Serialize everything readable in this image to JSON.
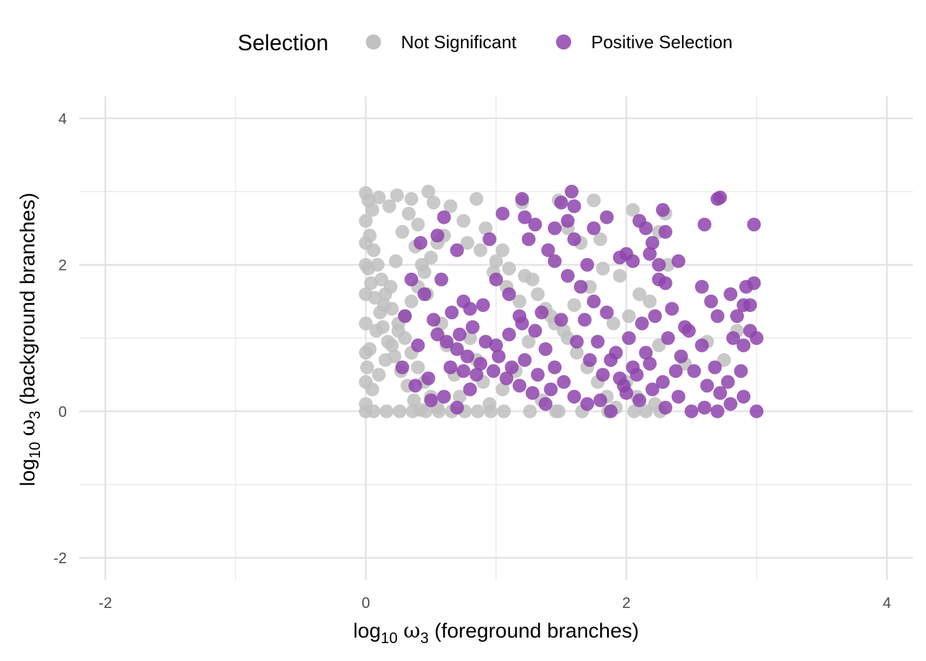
{
  "chart_data": {
    "type": "scatter",
    "title": "",
    "xlabel": "log10 ω3 (foreground branches)",
    "ylabel": "log10 ω3 (background branches)",
    "xlabel_parts": {
      "log": "log",
      "sub1": "10",
      "omega": "ω",
      "sub2": "3",
      "rest": " (foreground branches)"
    },
    "ylabel_parts": {
      "log": "log",
      "sub1": "10",
      "omega": "ω",
      "sub2": "3",
      "rest": " (background branches)"
    },
    "xlim": [
      -2.2,
      4.2
    ],
    "ylim": [
      -2.3,
      4.3
    ],
    "x_ticks": [
      -2,
      0,
      2,
      4
    ],
    "y_ticks": [
      -2,
      0,
      2,
      4
    ],
    "x_tick_labels": [
      "-2",
      "0",
      "2",
      "4"
    ],
    "y_tick_labels": [
      "-2",
      "0",
      "2",
      "4"
    ],
    "grid": true,
    "legend": {
      "title": "Selection",
      "position": "top",
      "entries": [
        "Not Significant",
        "Positive Selection"
      ]
    },
    "series": [
      {
        "name": "Not Significant",
        "color": "#c0c0c0",
        "points": [
          [
            0.0,
            2.98
          ],
          [
            0.02,
            2.88
          ],
          [
            0.05,
            2.75
          ],
          [
            0.1,
            2.92
          ],
          [
            0.18,
            2.8
          ],
          [
            0.24,
            2.95
          ],
          [
            0.35,
            2.9
          ],
          [
            0.48,
            3.0
          ],
          [
            0.52,
            2.85
          ],
          [
            0.65,
            2.8
          ],
          [
            0.85,
            2.9
          ],
          [
            0.92,
            2.5
          ],
          [
            0.4,
            2.55
          ],
          [
            0.6,
            2.4
          ],
          [
            0.75,
            2.6
          ],
          [
            1.05,
            2.2
          ],
          [
            1.2,
            2.85
          ],
          [
            1.48,
            2.88
          ],
          [
            1.75,
            2.88
          ],
          [
            2.05,
            2.75
          ],
          [
            2.3,
            2.7
          ],
          [
            2.25,
            2.45
          ],
          [
            1.55,
            2.5
          ],
          [
            1.65,
            2.3
          ],
          [
            1.8,
            2.35
          ],
          [
            0.0,
            2.6
          ],
          [
            0.03,
            2.4
          ],
          [
            0.06,
            2.2
          ],
          [
            0.09,
            2.0
          ],
          [
            0.12,
            1.8
          ],
          [
            0.15,
            1.6
          ],
          [
            0.2,
            1.4
          ],
          [
            0.25,
            1.2
          ],
          [
            0.3,
            1.0
          ],
          [
            0.35,
            0.8
          ],
          [
            0.4,
            0.6
          ],
          [
            0.45,
            0.4
          ],
          [
            0.5,
            0.2
          ],
          [
            0.55,
            0.05
          ],
          [
            0.0,
            0.1
          ],
          [
            0.05,
            0.3
          ],
          [
            0.1,
            0.5
          ],
          [
            0.15,
            0.7
          ],
          [
            0.2,
            0.9
          ],
          [
            0.25,
            1.1
          ],
          [
            0.3,
            1.3
          ],
          [
            0.35,
            1.5
          ],
          [
            0.4,
            1.7
          ],
          [
            0.45,
            1.9
          ],
          [
            0.5,
            2.1
          ],
          [
            0.55,
            2.3
          ],
          [
            0.02,
            1.95
          ],
          [
            0.04,
            1.75
          ],
          [
            0.07,
            1.55
          ],
          [
            0.11,
            1.35
          ],
          [
            0.13,
            1.15
          ],
          [
            0.17,
            0.95
          ],
          [
            0.22,
            0.75
          ],
          [
            0.27,
            0.55
          ],
          [
            0.32,
            0.35
          ],
          [
            0.37,
            0.15
          ],
          [
            0.42,
            0.02
          ],
          [
            0.01,
            0.6
          ],
          [
            0.03,
            0.85
          ],
          [
            0.08,
            1.1
          ],
          [
            0.14,
            1.45
          ],
          [
            0.19,
            1.7
          ],
          [
            0.23,
            2.05
          ],
          [
            0.28,
            2.45
          ],
          [
            0.33,
            2.7
          ],
          [
            0.38,
            2.25
          ],
          [
            0.43,
            2.0
          ],
          [
            0.47,
            1.6
          ],
          [
            0.58,
            1.2
          ],
          [
            0.62,
            0.9
          ],
          [
            0.68,
            0.5
          ],
          [
            0.72,
            0.2
          ],
          [
            0.8,
            1.0
          ],
          [
            0.85,
            0.7
          ],
          [
            0.9,
            0.4
          ],
          [
            0.95,
            0.1
          ],
          [
            0.78,
            2.3
          ],
          [
            0.88,
            2.2
          ],
          [
            0.98,
            1.9
          ],
          [
            1.08,
            1.7
          ],
          [
            1.18,
            1.5
          ],
          [
            1.28,
            1.8
          ],
          [
            1.38,
            1.4
          ],
          [
            1.45,
            1.2
          ],
          [
            1.55,
            1.0
          ],
          [
            1.62,
            0.8
          ],
          [
            1.7,
            0.6
          ],
          [
            1.78,
            0.4
          ],
          [
            1.85,
            0.2
          ],
          [
            1.92,
            0.05
          ],
          [
            2.0,
            0.4
          ],
          [
            2.08,
            0.2
          ],
          [
            2.15,
            0.0
          ],
          [
            2.22,
            0.1
          ],
          [
            1.0,
            2.05
          ],
          [
            1.1,
            1.95
          ],
          [
            1.22,
            1.85
          ],
          [
            1.32,
            1.6
          ],
          [
            1.42,
            1.3
          ],
          [
            1.52,
            1.1
          ],
          [
            1.6,
            1.45
          ],
          [
            1.72,
            1.7
          ],
          [
            1.82,
            1.95
          ],
          [
            1.95,
            1.85
          ],
          [
            2.02,
            1.3
          ],
          [
            2.1,
            1.6
          ],
          [
            2.18,
            1.5
          ],
          [
            2.25,
            0.9
          ],
          [
            2.32,
            2.0
          ],
          [
            2.45,
            0.65
          ],
          [
            2.62,
            0.95
          ],
          [
            2.75,
            0.7
          ],
          [
            2.85,
            1.1
          ],
          [
            1.9,
            1.2
          ],
          [
            1.25,
            0.95
          ],
          [
            1.15,
            0.55
          ],
          [
            1.05,
            0.3
          ],
          [
            1.35,
            0.15
          ],
          [
            1.48,
            0.0
          ],
          [
            0.0,
            1.2
          ],
          [
            0.0,
            0.8
          ],
          [
            0.0,
            0.4
          ],
          [
            0.0,
            0.0
          ],
          [
            0.0,
            1.6
          ],
          [
            0.0,
            2.0
          ],
          [
            0.0,
            2.3
          ],
          [
            0.06,
            0.0
          ],
          [
            0.16,
            0.0
          ],
          [
            0.26,
            0.0
          ],
          [
            0.36,
            0.0
          ],
          [
            0.46,
            0.0
          ],
          [
            0.56,
            0.0
          ],
          [
            0.66,
            0.0
          ],
          [
            0.76,
            0.0
          ],
          [
            0.86,
            0.0
          ],
          [
            0.96,
            0.0
          ],
          [
            1.06,
            0.0
          ],
          [
            1.26,
            0.0
          ],
          [
            1.46,
            0.0
          ],
          [
            1.66,
            0.0
          ],
          [
            1.86,
            0.0
          ],
          [
            2.06,
            0.0
          ],
          [
            2.26,
            0.0
          ]
        ]
      },
      {
        "name": "Positive Selection",
        "color": "#8e44ad",
        "points": [
          [
            1.2,
            2.9
          ],
          [
            1.58,
            3.0
          ],
          [
            1.6,
            2.8
          ],
          [
            1.5,
            2.85
          ],
          [
            1.05,
            2.7
          ],
          [
            1.22,
            2.65
          ],
          [
            1.3,
            2.55
          ],
          [
            1.45,
            2.5
          ],
          [
            1.55,
            2.6
          ],
          [
            1.75,
            2.5
          ],
          [
            1.85,
            2.65
          ],
          [
            2.1,
            2.6
          ],
          [
            2.15,
            2.5
          ],
          [
            2.28,
            2.75
          ],
          [
            2.3,
            2.45
          ],
          [
            2.2,
            2.3
          ],
          [
            2.6,
            2.55
          ],
          [
            2.7,
            2.9
          ],
          [
            2.72,
            2.92
          ],
          [
            2.98,
            2.55
          ],
          [
            0.55,
            2.4
          ],
          [
            0.42,
            2.3
          ],
          [
            0.6,
            2.65
          ],
          [
            0.7,
            2.2
          ],
          [
            0.95,
            2.35
          ],
          [
            1.25,
            2.35
          ],
          [
            1.4,
            2.2
          ],
          [
            1.6,
            2.35
          ],
          [
            1.7,
            2.0
          ],
          [
            1.95,
            2.1
          ],
          [
            2.0,
            2.15
          ],
          [
            2.05,
            2.05
          ],
          [
            2.18,
            2.15
          ],
          [
            2.25,
            2.0
          ],
          [
            2.4,
            2.05
          ],
          [
            2.25,
            1.8
          ],
          [
            2.3,
            1.75
          ],
          [
            2.58,
            1.7
          ],
          [
            2.65,
            1.5
          ],
          [
            2.8,
            1.6
          ],
          [
            2.9,
            1.45
          ],
          [
            2.92,
            1.7
          ],
          [
            2.98,
            1.75
          ],
          [
            2.95,
            1.45
          ],
          [
            2.7,
            1.3
          ],
          [
            2.85,
            1.3
          ],
          [
            2.95,
            1.1
          ],
          [
            3.0,
            1.0
          ],
          [
            2.9,
            0.9
          ],
          [
            2.82,
            1.0
          ],
          [
            0.75,
            1.5
          ],
          [
            0.8,
            1.4
          ],
          [
            0.9,
            1.45
          ],
          [
            1.0,
            1.8
          ],
          [
            1.1,
            1.6
          ],
          [
            1.18,
            1.3
          ],
          [
            1.3,
            1.1
          ],
          [
            1.38,
            0.85
          ],
          [
            1.45,
            0.6
          ],
          [
            1.52,
            0.4
          ],
          [
            1.6,
            0.2
          ],
          [
            1.7,
            0.1
          ],
          [
            1.8,
            0.15
          ],
          [
            1.88,
            0.0
          ],
          [
            2.0,
            0.25
          ],
          [
            2.1,
            0.15
          ],
          [
            2.2,
            0.3
          ],
          [
            2.3,
            0.05
          ],
          [
            2.4,
            0.2
          ],
          [
            2.5,
            0.0
          ],
          [
            2.6,
            0.05
          ],
          [
            2.7,
            0.0
          ],
          [
            2.8,
            0.1
          ],
          [
            2.9,
            0.2
          ],
          [
            3.0,
            0.0
          ],
          [
            0.55,
            1.05
          ],
          [
            0.62,
            0.95
          ],
          [
            0.7,
            0.85
          ],
          [
            0.78,
            0.75
          ],
          [
            0.88,
            0.65
          ],
          [
            0.98,
            0.55
          ],
          [
            1.08,
            0.45
          ],
          [
            1.18,
            0.35
          ],
          [
            1.28,
            0.25
          ],
          [
            1.38,
            0.1
          ],
          [
            0.6,
            0.2
          ],
          [
            0.7,
            0.05
          ],
          [
            0.8,
            0.3
          ],
          [
            0.5,
            0.15
          ],
          [
            0.48,
            0.45
          ],
          [
            0.65,
            0.6
          ],
          [
            0.75,
            0.55
          ],
          [
            0.85,
            0.5
          ],
          [
            1.0,
            0.9
          ],
          [
            1.1,
            1.05
          ],
          [
            1.2,
            1.2
          ],
          [
            1.35,
            1.35
          ],
          [
            1.5,
            1.25
          ],
          [
            1.62,
            0.95
          ],
          [
            1.72,
            0.7
          ],
          [
            1.82,
            0.5
          ],
          [
            1.92,
            0.8
          ],
          [
            2.02,
            1.0
          ],
          [
            2.12,
            1.2
          ],
          [
            2.22,
            1.3
          ],
          [
            2.32,
            1.0
          ],
          [
            2.42,
            0.75
          ],
          [
            2.52,
            0.55
          ],
          [
            2.62,
            0.35
          ],
          [
            2.72,
            0.25
          ],
          [
            2.48,
            1.1
          ],
          [
            2.58,
            0.9
          ],
          [
            2.68,
            0.6
          ],
          [
            2.78,
            0.4
          ],
          [
            2.88,
            0.55
          ],
          [
            2.35,
            1.4
          ],
          [
            2.45,
            1.15
          ],
          [
            2.15,
            0.8
          ],
          [
            2.05,
            0.6
          ],
          [
            1.95,
            0.45
          ],
          [
            1.85,
            1.35
          ],
          [
            1.75,
            1.5
          ],
          [
            1.65,
            1.7
          ],
          [
            1.55,
            1.85
          ],
          [
            1.45,
            2.05
          ],
          [
            0.35,
            1.8
          ],
          [
            0.45,
            1.6
          ],
          [
            0.52,
            1.25
          ],
          [
            0.58,
            1.8
          ],
          [
            0.66,
            1.35
          ],
          [
            0.72,
            1.05
          ],
          [
            0.82,
            1.15
          ],
          [
            0.92,
            0.95
          ],
          [
            1.02,
            0.75
          ],
          [
            1.12,
            0.6
          ],
          [
            1.22,
            0.7
          ],
          [
            1.32,
            0.5
          ],
          [
            1.42,
            0.3
          ],
          [
            0.4,
            0.9
          ],
          [
            0.3,
            1.3
          ],
          [
            0.28,
            0.6
          ],
          [
            0.38,
            0.35
          ],
          [
            1.68,
            1.25
          ],
          [
            1.78,
            0.95
          ],
          [
            1.88,
            0.7
          ],
          [
            1.98,
            0.35
          ],
          [
            2.08,
            0.5
          ],
          [
            2.18,
            0.65
          ],
          [
            2.28,
            0.4
          ],
          [
            2.38,
            0.55
          ]
        ]
      }
    ]
  }
}
